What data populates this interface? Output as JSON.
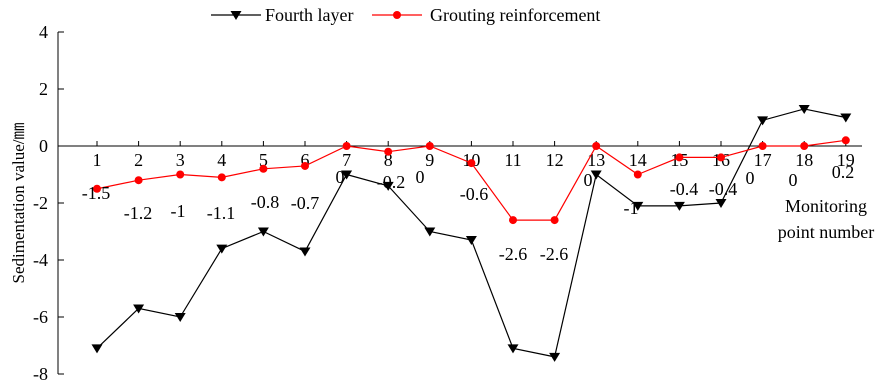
{
  "chart_data": {
    "type": "line",
    "ylabel": "Sedimentation value/㎜",
    "xlabel": [
      "Monitoring",
      "point number"
    ],
    "ylim": [
      -8,
      4
    ],
    "yticks": [
      -8,
      -6,
      -4,
      -2,
      0,
      2,
      4
    ],
    "categories": [
      "1",
      "2",
      "3",
      "4",
      "5",
      "6",
      "7",
      "8",
      "9",
      "10",
      "11",
      "12",
      "13",
      "14",
      "15",
      "16",
      "17",
      "18",
      "19"
    ],
    "grid": false,
    "legend_position": "top",
    "series": [
      {
        "name": "Fourth layer",
        "color": "#000000",
        "marker": "triangle-down",
        "values": [
          -7.1,
          -5.7,
          -6.0,
          -3.6,
          -3.0,
          -3.7,
          -1.0,
          -1.4,
          -3.0,
          -3.3,
          -7.1,
          -7.4,
          -1.0,
          -2.1,
          -2.1,
          -2.0,
          0.9,
          1.3,
          1.0
        ]
      },
      {
        "name": "Grouting reinforcement",
        "color": "#ff0000",
        "marker": "circle",
        "values": [
          -1.5,
          -1.2,
          -1.0,
          -1.1,
          -0.8,
          -0.7,
          0,
          -0.2,
          0,
          -0.6,
          -2.6,
          -2.6,
          0,
          -1.0,
          -0.4,
          -0.4,
          0,
          0,
          0.2
        ],
        "data_labels": [
          "-1.5",
          "-1.2",
          "-1",
          "-1.1",
          "-0.8",
          "-0.7",
          "0",
          "-0.2",
          "0",
          "-0.6",
          "-2.6",
          "-2.6",
          "0",
          "-1",
          "-0.4",
          "-0.4",
          "0",
          "0",
          "0.2"
        ]
      }
    ]
  }
}
